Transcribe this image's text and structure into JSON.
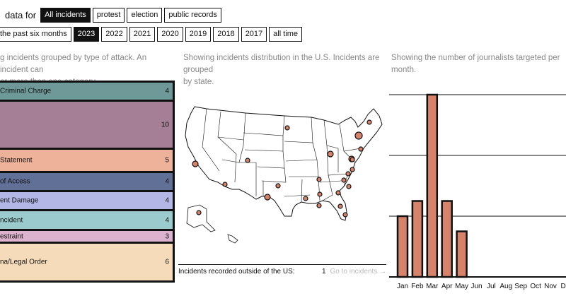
{
  "filters": {
    "label": "data for",
    "types": [
      {
        "label": "All incidents",
        "active": true
      },
      {
        "label": "protest",
        "active": false
      },
      {
        "label": "election",
        "active": false
      },
      {
        "label": "public records",
        "active": false
      }
    ],
    "periods": [
      {
        "label": "the past six months",
        "active": false
      },
      {
        "label": "2023",
        "active": true
      },
      {
        "label": "2022",
        "active": false
      },
      {
        "label": "2021",
        "active": false
      },
      {
        "label": "2020",
        "active": false
      },
      {
        "label": "2019",
        "active": false
      },
      {
        "label": "2018",
        "active": false
      },
      {
        "label": "2017",
        "active": false
      },
      {
        "label": "all time",
        "active": false
      }
    ]
  },
  "descriptions": {
    "categories": "g incidents grouped by type of attack. An incident can\ner more than one category.",
    "map": "Showing incidents distribution in the U.S. Incidents are grouped\nby state.",
    "months": "Showing the number of journalists targeted per month."
  },
  "categories": [
    {
      "label": "Criminal Charge",
      "count": "4",
      "value": 4,
      "color": "#6e9998"
    },
    {
      "label": "",
      "count": "10",
      "value": 10,
      "color": "#a57f96"
    },
    {
      "label": "Statement",
      "count": "5",
      "value": 5,
      "color": "#eeb29b"
    },
    {
      "label": "of Access",
      "count": "4",
      "value": 4,
      "color": "#617097"
    },
    {
      "label": "ent Damage",
      "count": "4",
      "value": 4,
      "color": "#b3b7e6"
    },
    {
      "label": "ncident",
      "count": "4",
      "value": 4,
      "color": "#9ccbcd"
    },
    {
      "label": "estraint",
      "count": "3",
      "value": 3,
      "color": "#ddb2ce"
    },
    {
      "label": "na/Legal Order",
      "count": "6",
      "value": 6,
      "color": "#f5dbb9"
    }
  ],
  "map": {
    "outside_label": "Incidents recorded outside of the US:",
    "outside_count": "1",
    "outside_link": "Go to incidents →",
    "dot_color": "#d7826b"
  },
  "chart_data": {
    "type": "bar",
    "categories": [
      "Jan",
      "Feb",
      "Mar",
      "Apr",
      "May",
      "Jun",
      "Jul",
      "Aug",
      "Sep",
      "Oct",
      "Nov",
      "De"
    ],
    "values": [
      4,
      5,
      12,
      5,
      3,
      0,
      0,
      0,
      0,
      0,
      0,
      0
    ],
    "ylim": [
      0,
      12
    ],
    "gridlines": [
      4,
      8,
      12
    ],
    "bar_color": "#d7826b",
    "title": "",
    "xlabel": "",
    "ylabel": ""
  }
}
